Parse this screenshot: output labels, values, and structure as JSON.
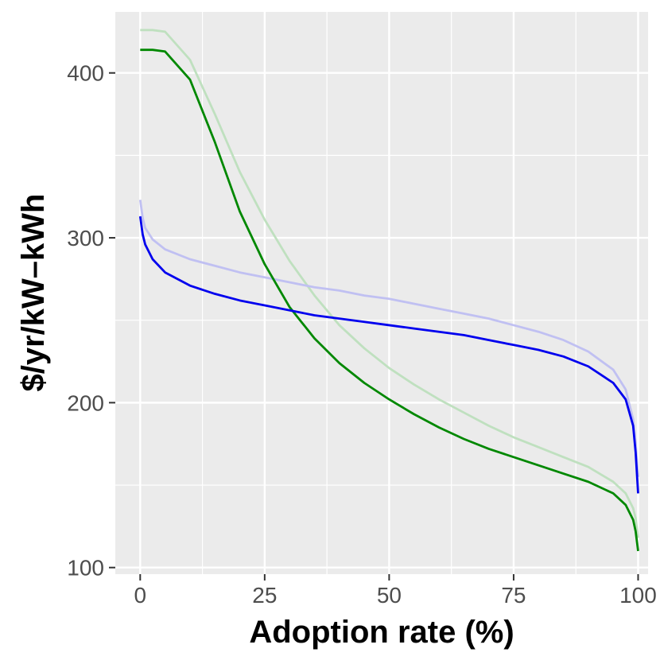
{
  "chart_data": {
    "type": "line",
    "title": "",
    "xlabel": "Adoption rate (%)",
    "ylabel": "$/yr/kW–kWh",
    "xlim": [
      -5,
      102
    ],
    "ylim": [
      96,
      437
    ],
    "x_ticks": [
      0,
      25,
      50,
      75,
      100
    ],
    "x_tick_labels": [
      "0",
      "25",
      "50",
      "75",
      "100"
    ],
    "y_ticks": [
      100,
      200,
      300,
      400
    ],
    "y_tick_labels": [
      "100",
      "200",
      "300",
      "400"
    ],
    "grid": true,
    "legend": "none",
    "background": "#ebebeb",
    "series": [
      {
        "name": "green-light",
        "color": "#bfe0bf",
        "x": [
          0,
          2.5,
          5,
          10,
          15,
          20,
          25,
          30,
          35,
          40,
          45,
          50,
          55,
          60,
          65,
          70,
          75,
          80,
          85,
          90,
          95,
          97.5,
          99,
          99.5,
          100
        ],
        "values": [
          426,
          426,
          425,
          408,
          375,
          340,
          311,
          286,
          265,
          247,
          233,
          221,
          211,
          202,
          194,
          186,
          179,
          173,
          167,
          161,
          152,
          145,
          136,
          130,
          118
        ]
      },
      {
        "name": "blue-light",
        "color": "#c0c0f2",
        "x": [
          0,
          0.5,
          1,
          2.5,
          5,
          10,
          15,
          20,
          25,
          30,
          35,
          40,
          45,
          50,
          55,
          60,
          65,
          70,
          75,
          80,
          85,
          90,
          95,
          97.5,
          99,
          99.5,
          100
        ],
        "values": [
          323,
          312,
          306,
          299,
          293,
          287,
          283,
          279,
          276,
          273,
          270,
          268,
          265,
          263,
          260,
          257,
          254,
          251,
          247,
          243,
          238,
          231,
          220,
          208,
          190,
          175,
          155
        ]
      },
      {
        "name": "green",
        "color": "#008800",
        "x": [
          0,
          2.5,
          5,
          10,
          15,
          20,
          25,
          30,
          35,
          40,
          45,
          50,
          55,
          60,
          65,
          70,
          75,
          80,
          85,
          90,
          95,
          97.5,
          99,
          99.5,
          100
        ],
        "values": [
          414,
          414,
          413,
          396,
          358,
          316,
          284,
          258,
          239,
          224,
          212,
          202,
          193,
          185,
          178,
          172,
          167,
          162,
          157,
          152,
          145,
          138,
          129,
          122,
          110
        ]
      },
      {
        "name": "blue",
        "color": "#0000ee",
        "x": [
          0,
          0.5,
          1,
          2.5,
          5,
          10,
          15,
          20,
          25,
          30,
          35,
          40,
          45,
          50,
          55,
          60,
          65,
          70,
          75,
          80,
          85,
          90,
          95,
          97.5,
          99,
          99.5,
          100
        ],
        "values": [
          313,
          302,
          296,
          287,
          279,
          271,
          266,
          262,
          259,
          256,
          253,
          251,
          249,
          247,
          245,
          243,
          241,
          238,
          235,
          232,
          228,
          222,
          212,
          202,
          186,
          170,
          145
        ]
      }
    ]
  }
}
